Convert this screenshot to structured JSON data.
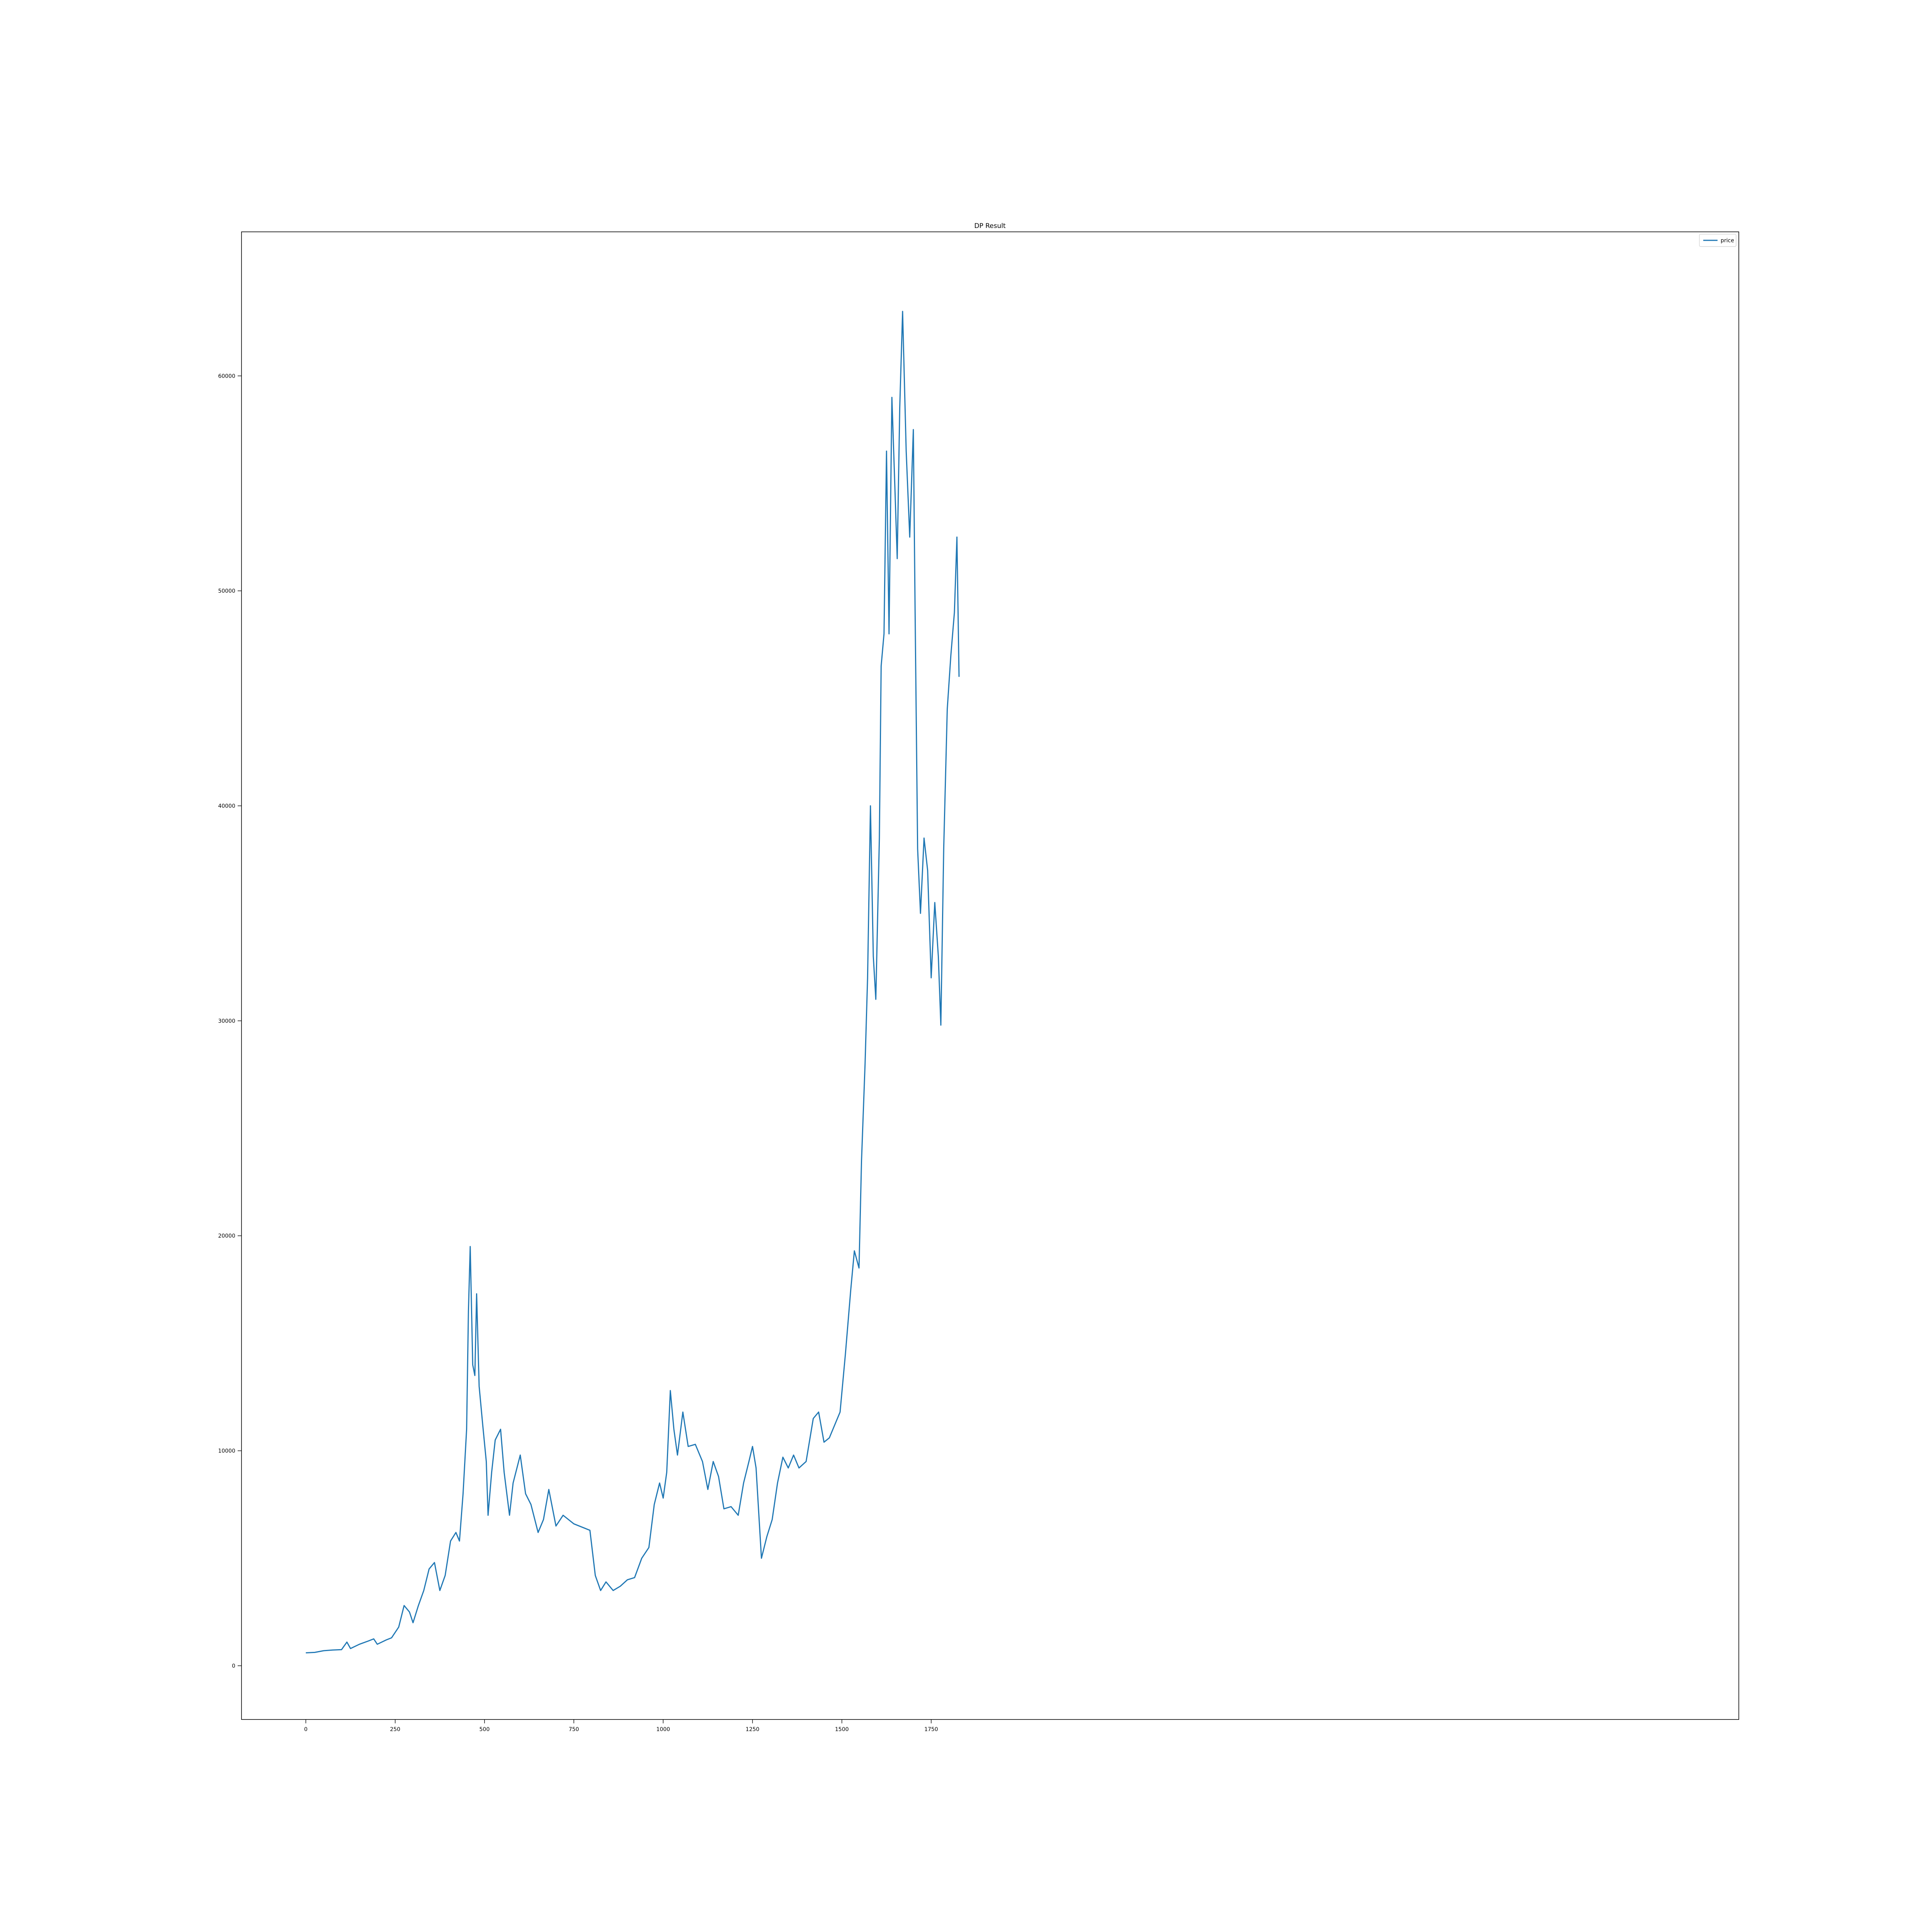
{
  "chart_data": {
    "type": "line",
    "title": "DP Result",
    "xlabel": "",
    "ylabel": "",
    "xlim": [
      -180,
      4010
    ],
    "ylim": [
      -2500,
      66700
    ],
    "x_ticks": [
      0,
      250,
      500,
      750,
      1000,
      1250,
      1500,
      1750
    ],
    "y_ticks": [
      0,
      10000,
      20000,
      30000,
      40000,
      50000,
      60000
    ],
    "grid": false,
    "legend": {
      "placement": "top-right",
      "entries": [
        "price"
      ]
    },
    "series": [
      {
        "name": "price",
        "color": "#1f77b4",
        "points": [
          [
            0,
            600
          ],
          [
            25,
            620
          ],
          [
            50,
            700
          ],
          [
            75,
            730
          ],
          [
            100,
            750
          ],
          [
            115,
            1100
          ],
          [
            125,
            800
          ],
          [
            150,
            1000
          ],
          [
            175,
            1150
          ],
          [
            190,
            1250
          ],
          [
            200,
            1000
          ],
          [
            225,
            1200
          ],
          [
            240,
            1300
          ],
          [
            260,
            1800
          ],
          [
            275,
            2800
          ],
          [
            290,
            2500
          ],
          [
            300,
            2000
          ],
          [
            315,
            2800
          ],
          [
            330,
            3500
          ],
          [
            345,
            4500
          ],
          [
            360,
            4800
          ],
          [
            375,
            3500
          ],
          [
            390,
            4200
          ],
          [
            405,
            5800
          ],
          [
            420,
            6200
          ],
          [
            430,
            5800
          ],
          [
            440,
            8000
          ],
          [
            450,
            11000
          ],
          [
            455,
            16500
          ],
          [
            460,
            19500
          ],
          [
            467,
            14000
          ],
          [
            473,
            13500
          ],
          [
            478,
            17300
          ],
          [
            485,
            13000
          ],
          [
            495,
            11200
          ],
          [
            505,
            9500
          ],
          [
            510,
            7000
          ],
          [
            520,
            9000
          ],
          [
            530,
            10500
          ],
          [
            545,
            11000
          ],
          [
            555,
            9000
          ],
          [
            570,
            7000
          ],
          [
            580,
            8500
          ],
          [
            600,
            9800
          ],
          [
            615,
            8000
          ],
          [
            630,
            7500
          ],
          [
            650,
            6200
          ],
          [
            665,
            6800
          ],
          [
            680,
            8200
          ],
          [
            700,
            6500
          ],
          [
            720,
            7000
          ],
          [
            750,
            6600
          ],
          [
            780,
            6400
          ],
          [
            795,
            6300
          ],
          [
            810,
            4200
          ],
          [
            825,
            3500
          ],
          [
            840,
            3900
          ],
          [
            860,
            3500
          ],
          [
            880,
            3700
          ],
          [
            900,
            4000
          ],
          [
            920,
            4100
          ],
          [
            940,
            5000
          ],
          [
            960,
            5500
          ],
          [
            975,
            7500
          ],
          [
            990,
            8500
          ],
          [
            1000,
            7800
          ],
          [
            1010,
            9000
          ],
          [
            1020,
            12800
          ],
          [
            1030,
            11000
          ],
          [
            1040,
            9800
          ],
          [
            1055,
            11800
          ],
          [
            1070,
            10200
          ],
          [
            1090,
            10300
          ],
          [
            1110,
            9500
          ],
          [
            1125,
            8200
          ],
          [
            1140,
            9500
          ],
          [
            1155,
            8800
          ],
          [
            1170,
            7300
          ],
          [
            1190,
            7400
          ],
          [
            1210,
            7000
          ],
          [
            1225,
            8500
          ],
          [
            1240,
            9500
          ],
          [
            1250,
            10200
          ],
          [
            1260,
            9200
          ],
          [
            1275,
            5000
          ],
          [
            1290,
            6000
          ],
          [
            1305,
            6800
          ],
          [
            1320,
            8500
          ],
          [
            1335,
            9700
          ],
          [
            1350,
            9200
          ],
          [
            1365,
            9800
          ],
          [
            1380,
            9200
          ],
          [
            1400,
            9500
          ],
          [
            1420,
            11500
          ],
          [
            1435,
            11800
          ],
          [
            1450,
            10400
          ],
          [
            1465,
            10600
          ],
          [
            1480,
            11200
          ],
          [
            1495,
            11800
          ],
          [
            1510,
            14500
          ],
          [
            1525,
            17500
          ],
          [
            1535,
            19300
          ],
          [
            1548,
            18500
          ],
          [
            1555,
            23500
          ],
          [
            1565,
            28000
          ],
          [
            1572,
            32000
          ],
          [
            1580,
            40000
          ],
          [
            1588,
            33000
          ],
          [
            1595,
            31000
          ],
          [
            1605,
            38500
          ],
          [
            1610,
            46500
          ],
          [
            1618,
            48000
          ],
          [
            1625,
            56500
          ],
          [
            1632,
            48000
          ],
          [
            1640,
            59000
          ],
          [
            1648,
            55000
          ],
          [
            1655,
            51500
          ],
          [
            1662,
            58500
          ],
          [
            1670,
            63000
          ],
          [
            1680,
            56500
          ],
          [
            1690,
            52500
          ],
          [
            1700,
            57500
          ],
          [
            1705,
            49000
          ],
          [
            1712,
            38000
          ],
          [
            1720,
            35000
          ],
          [
            1730,
            38500
          ],
          [
            1740,
            37000
          ],
          [
            1750,
            32000
          ],
          [
            1760,
            35500
          ],
          [
            1770,
            33000
          ],
          [
            1777,
            29800
          ],
          [
            1785,
            38000
          ],
          [
            1795,
            44500
          ],
          [
            1805,
            47000
          ],
          [
            1815,
            49000
          ],
          [
            1822,
            52500
          ],
          [
            1828,
            46000
          ]
        ]
      }
    ]
  }
}
